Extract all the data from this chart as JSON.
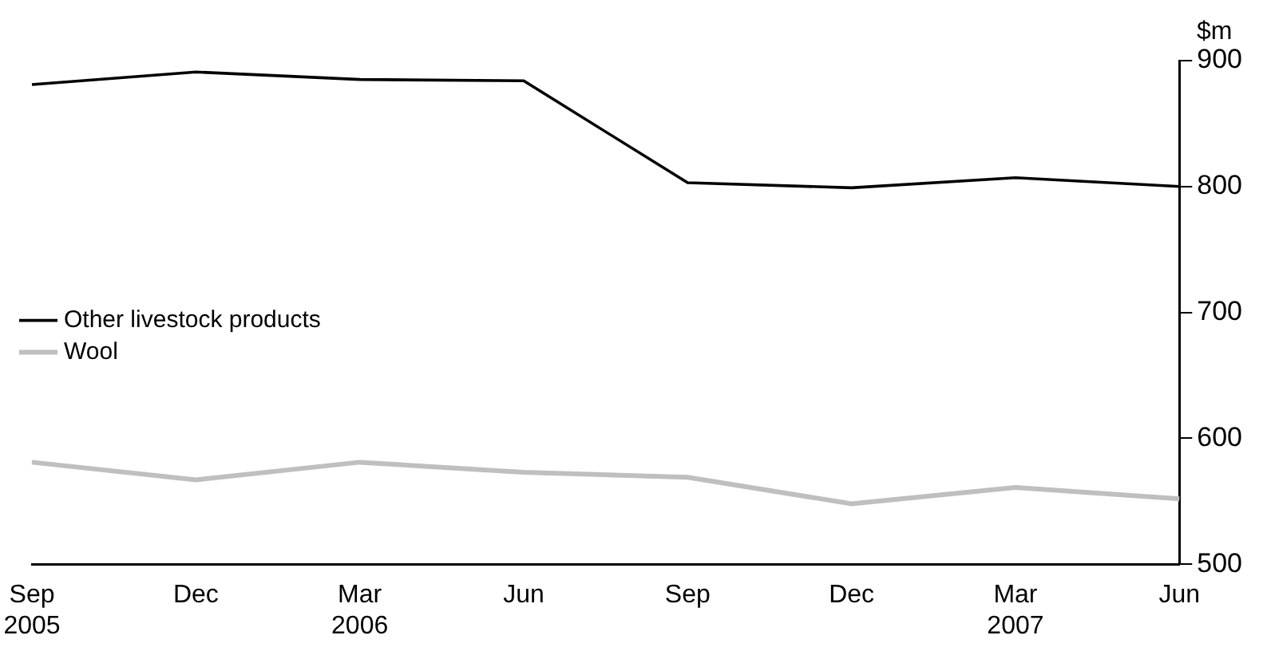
{
  "chart_data": {
    "type": "line",
    "ylabel": "$m",
    "categories": [
      "Sep 2005",
      "Dec",
      "Mar 2006",
      "Jun",
      "Sep",
      "Dec",
      "Mar 2007",
      "Jun"
    ],
    "series": [
      {
        "name": "Other livestock products",
        "color": "#000000",
        "values": [
          881,
          891,
          885,
          884,
          803,
          799,
          807,
          800
        ]
      },
      {
        "name": "Wool",
        "color": "#bfbfbf",
        "values": [
          581,
          567,
          581,
          573,
          569,
          548,
          561,
          552
        ]
      }
    ],
    "ylim": [
      500,
      900
    ],
    "yticks": [
      500,
      600,
      700,
      800,
      900
    ],
    "grid": false,
    "legend": "left",
    "marker": "none",
    "line_style": "solid"
  }
}
